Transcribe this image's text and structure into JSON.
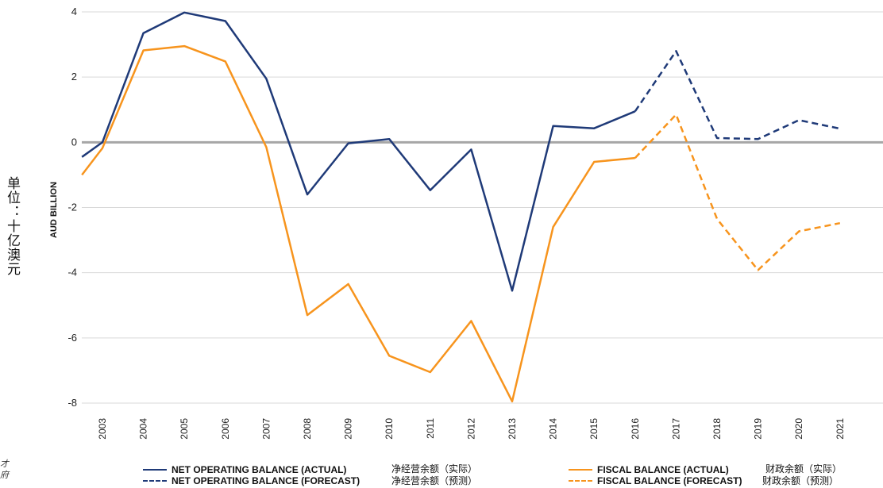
{
  "chart_data": {
    "type": "line",
    "x": [
      "2003",
      "2004",
      "2005",
      "2006",
      "2007",
      "2008",
      "2009",
      "2010",
      "2011",
      "2012",
      "2013",
      "2014",
      "2015",
      "2016",
      "2017",
      "2018",
      "2019",
      "2020",
      "2021"
    ],
    "ylim": [
      -8,
      4
    ],
    "yticks": [
      4,
      2,
      0,
      -2,
      -4,
      -6,
      -8
    ],
    "ylabel_cn": "单位：十亿澳元",
    "ylabel_en": "AUD BILLION",
    "grid": true,
    "legend_position": "bottom",
    "series": [
      {
        "name": "NET OPERATING BALANCE (ACTUAL)",
        "name_cn": "净经营余额（实际）",
        "color": "#1F3A78",
        "dash": "solid",
        "x": [
          "2002.5",
          "2003",
          "2004",
          "2005",
          "2006",
          "2007",
          "2008",
          "2009",
          "2010",
          "2011",
          "2012",
          "2013",
          "2014",
          "2015",
          "2016"
        ],
        "values": [
          -0.45,
          0.0,
          3.35,
          3.98,
          3.72,
          1.95,
          -1.6,
          -0.03,
          0.1,
          -1.47,
          -0.22,
          -4.55,
          0.5,
          0.43,
          0.95
        ]
      },
      {
        "name": "NET OPERATING BALANCE (FORECAST)",
        "name_cn": "净经营余额（预测）",
        "color": "#1F3A78",
        "dash": "dashed",
        "x": [
          "2016",
          "2017",
          "2018",
          "2019",
          "2020",
          "2021"
        ],
        "values": [
          0.95,
          2.8,
          0.13,
          0.1,
          0.68,
          0.42
        ]
      },
      {
        "name": "FISCAL BALANCE (ACTUAL)",
        "name_cn": "财政余额（实际）",
        "color": "#F7941D",
        "dash": "solid",
        "x": [
          "2002.5",
          "2003",
          "2004",
          "2005",
          "2006",
          "2007",
          "2008",
          "2009",
          "2010",
          "2011",
          "2012",
          "2013",
          "2014",
          "2015",
          "2016"
        ],
        "values": [
          -1.0,
          -0.18,
          2.82,
          2.95,
          2.48,
          -0.15,
          -5.3,
          -4.35,
          -6.55,
          -7.05,
          -5.48,
          -7.95,
          -2.6,
          -0.6,
          -0.48
        ]
      },
      {
        "name": "FISCAL BALANCE (FORECAST)",
        "name_cn": "财政余额（预测）",
        "color": "#F7941D",
        "dash": "dashed",
        "x": [
          "2016",
          "2017",
          "2018",
          "2019",
          "2020",
          "2021"
        ],
        "values": [
          -0.48,
          0.85,
          -2.35,
          -3.92,
          -2.73,
          -2.48
        ]
      }
    ]
  },
  "legend": {
    "items": [
      {
        "en": "NET OPERATING BALANCE (ACTUAL)",
        "cn": "净经营余额（实际）"
      },
      {
        "en": "NET OPERATING BALANCE (FORECAST)",
        "cn": "净经营余额（预测）"
      },
      {
        "en": "FISCAL BALANCE (ACTUAL)",
        "cn": "财政余额（实际）"
      },
      {
        "en": "FISCAL BALANCE (FORECAST)",
        "cn": "财政余额（预测）"
      }
    ]
  },
  "corner_text": [
    "才",
    "府"
  ]
}
